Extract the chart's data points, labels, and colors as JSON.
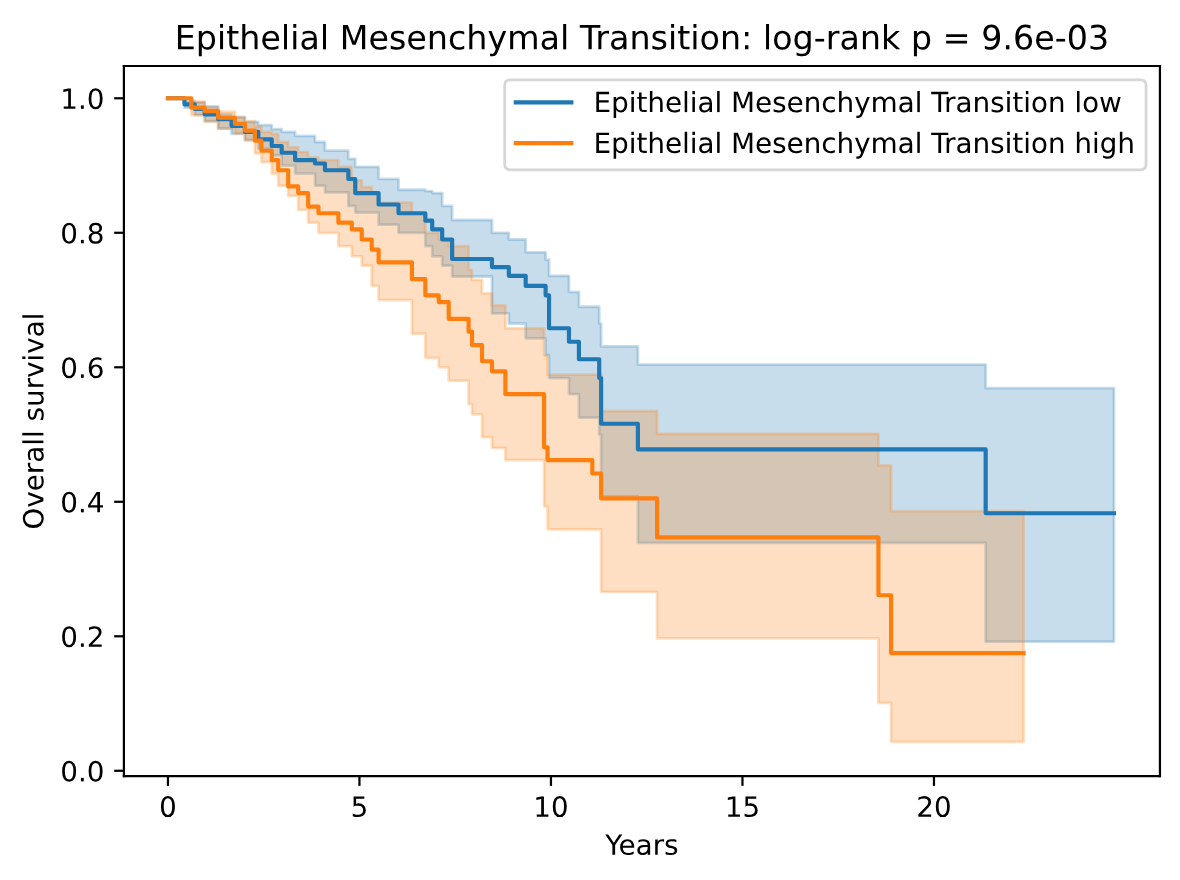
{
  "chart_data": {
    "type": "step",
    "title": "Epithelial Mesenchymal Transition: log-rank p = 9.6e-03",
    "xlabel": "Years",
    "ylabel": "Overall survival",
    "xlim": [
      -1.15,
      25.9
    ],
    "xticks": [
      0,
      5,
      10,
      15,
      20
    ],
    "ylim": [
      -0.008,
      1.048
    ],
    "yticks": [
      {
        "value": 0,
        "label": "0.0"
      },
      {
        "value": 0.2,
        "label": "0.2"
      },
      {
        "value": 0.4,
        "label": "0.4"
      },
      {
        "value": 0.6,
        "label": "0.6"
      },
      {
        "value": 0.8,
        "label": "0.8"
      },
      {
        "value": 1,
        "label": "1.0"
      }
    ],
    "grid": false,
    "legend": "top right",
    "marker": "none",
    "line_style": "solid",
    "series": [
      {
        "name": "Epithelial Mesenchymal Transition low",
        "color": "#1f77b4",
        "x": [
          0,
          0.43,
          0.7,
          0.96,
          1.31,
          1.66,
          2.01,
          2.36,
          2.71,
          2.97,
          3.32,
          3.84,
          4.1,
          4.71,
          4.89,
          5.5,
          6.02,
          6.72,
          6.9,
          7.16,
          7.42,
          8.46,
          8.9,
          9.34,
          9.86,
          9.95,
          10.47,
          10.73,
          11.26,
          11.31,
          12.27,
          21.35,
          24.7
        ],
        "values": [
          1.0,
          0.991,
          0.984,
          0.976,
          0.969,
          0.959,
          0.95,
          0.939,
          0.929,
          0.919,
          0.908,
          0.903,
          0.893,
          0.88,
          0.859,
          0.842,
          0.829,
          0.818,
          0.805,
          0.79,
          0.761,
          0.749,
          0.736,
          0.721,
          0.707,
          0.658,
          0.638,
          0.612,
          0.584,
          0.516,
          0.478,
          0.383,
          0.383
        ],
        "upper": [
          1.0,
          0.996,
          0.994,
          0.988,
          0.976,
          0.972,
          0.965,
          0.96,
          0.954,
          0.95,
          0.944,
          0.935,
          0.922,
          0.91,
          0.898,
          0.88,
          0.864,
          0.862,
          0.859,
          0.84,
          0.819,
          0.8,
          0.79,
          0.771,
          0.76,
          0.736,
          0.712,
          0.69,
          0.665,
          0.631,
          0.604,
          0.569,
          0.569
        ],
        "lower": [
          1.0,
          0.986,
          0.975,
          0.966,
          0.955,
          0.947,
          0.938,
          0.925,
          0.915,
          0.9,
          0.888,
          0.87,
          0.86,
          0.84,
          0.83,
          0.812,
          0.8,
          0.78,
          0.765,
          0.751,
          0.735,
          0.68,
          0.665,
          0.643,
          0.618,
          0.584,
          0.56,
          0.525,
          0.5,
          0.408,
          0.339,
          0.192,
          0.192
        ]
      },
      {
        "name": "Epithelial Mesenchymal Transition high",
        "color": "#ff7f0e",
        "x": [
          0,
          0.61,
          0.96,
          1.31,
          1.75,
          2.01,
          2.27,
          2.44,
          2.71,
          2.88,
          3.14,
          3.4,
          3.66,
          3.93,
          4.45,
          4.8,
          5.06,
          5.32,
          5.5,
          6.37,
          6.72,
          7.07,
          7.33,
          7.85,
          7.94,
          8.2,
          8.46,
          8.81,
          9.82,
          9.91,
          11.08,
          11.31,
          12.77,
          18.55,
          18.88,
          22.34
        ],
        "values": [
          1.0,
          0.986,
          0.981,
          0.971,
          0.962,
          0.952,
          0.937,
          0.922,
          0.908,
          0.893,
          0.869,
          0.859,
          0.839,
          0.829,
          0.815,
          0.805,
          0.79,
          0.775,
          0.756,
          0.731,
          0.707,
          0.697,
          0.672,
          0.653,
          0.633,
          0.609,
          0.594,
          0.56,
          0.481,
          0.462,
          0.442,
          0.405,
          0.347,
          0.261,
          0.175,
          0.175
        ],
        "upper": [
          1.0,
          0.995,
          0.986,
          0.98,
          0.972,
          0.966,
          0.958,
          0.95,
          0.947,
          0.935,
          0.927,
          0.92,
          0.912,
          0.908,
          0.898,
          0.878,
          0.868,
          0.859,
          0.845,
          0.829,
          0.8,
          0.79,
          0.78,
          0.745,
          0.73,
          0.71,
          0.692,
          0.658,
          0.618,
          0.589,
          0.589,
          0.535,
          0.501,
          0.454,
          0.386,
          0.386
        ],
        "lower": [
          1.0,
          0.975,
          0.965,
          0.955,
          0.948,
          0.937,
          0.918,
          0.905,
          0.888,
          0.87,
          0.855,
          0.834,
          0.815,
          0.8,
          0.78,
          0.765,
          0.751,
          0.721,
          0.7,
          0.65,
          0.614,
          0.6,
          0.58,
          0.545,
          0.53,
          0.496,
          0.48,
          0.462,
          0.393,
          0.359,
          0.359,
          0.266,
          0.197,
          0.101,
          0.043,
          0.043
        ]
      }
    ]
  }
}
